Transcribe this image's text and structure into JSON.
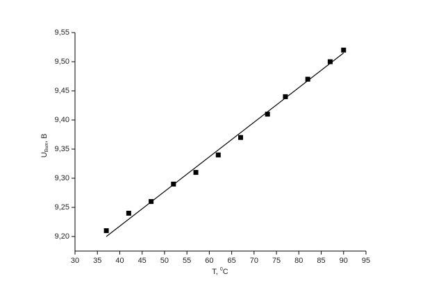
{
  "chart_data": {
    "type": "scatter",
    "xlabel": [
      "T, ",
      "0",
      "C"
    ],
    "ylabel": [
      "U",
      "Вых",
      ", В"
    ],
    "series": [
      {
        "color": "#000000",
        "marker": "square",
        "x": [
          37,
          42,
          47,
          52,
          57,
          62,
          67,
          73,
          77,
          82,
          87,
          90
        ],
        "values": [
          9.21,
          9.24,
          9.26,
          9.29,
          9.31,
          9.34,
          9.37,
          9.41,
          9.44,
          9.47,
          9.5,
          9.52
        ]
      },
      {
        "color": "#000000",
        "marker": "line",
        "x": [
          37,
          90
        ],
        "values": [
          9.2,
          9.515
        ]
      }
    ],
    "xlim": [
      30,
      95
    ],
    "xticks": [
      30,
      35,
      40,
      45,
      50,
      55,
      60,
      65,
      70,
      75,
      80,
      85,
      90,
      95
    ],
    "ylim": [
      9.175,
      9.55
    ],
    "yticks": [
      {
        "value": 9.2,
        "label": "9,20"
      },
      {
        "value": 9.25,
        "label": "9,25"
      },
      {
        "value": 9.3,
        "label": "9,30"
      },
      {
        "value": 9.35,
        "label": "9,35"
      },
      {
        "value": 9.4,
        "label": "9,40"
      },
      {
        "value": 9.45,
        "label": "9,45"
      },
      {
        "value": 9.5,
        "label": "9,50"
      },
      {
        "value": 9.55,
        "label": "9,55"
      }
    ],
    "grid": false
  }
}
